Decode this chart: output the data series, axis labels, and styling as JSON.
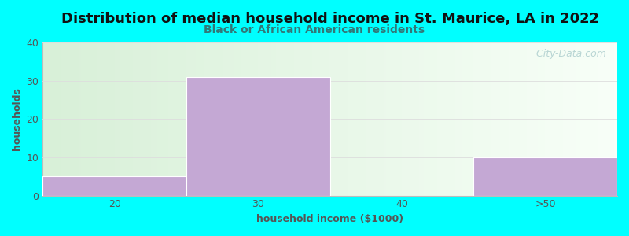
{
  "title": "Distribution of median household income in St. Maurice, LA in 2022",
  "subtitle": "Black or African American residents",
  "xlabel": "household income ($1000)",
  "ylabel": "households",
  "background_color": "#00FFFF",
  "bar_color": "#C4A8D4",
  "bar_edge_color": "#ffffff",
  "categories": [
    "20",
    "30",
    "40",
    ">50"
  ],
  "values": [
    5,
    31,
    0,
    10
  ],
  "bin_edges": [
    0,
    1,
    2,
    3,
    4
  ],
  "ylim": [
    0,
    40
  ],
  "yticks": [
    0,
    10,
    20,
    30,
    40
  ],
  "title_fontsize": 13,
  "subtitle_fontsize": 10,
  "label_fontsize": 9,
  "tick_fontsize": 9,
  "title_color": "#111111",
  "subtitle_color": "#337777",
  "axis_color": "#555555",
  "grid_color": "#dddddd",
  "gradient_left": "#d8f0d8",
  "gradient_right": "#f8fff8",
  "watermark": "  City-Data.com",
  "watermark_color": "#aacccc",
  "watermark_fontsize": 9
}
